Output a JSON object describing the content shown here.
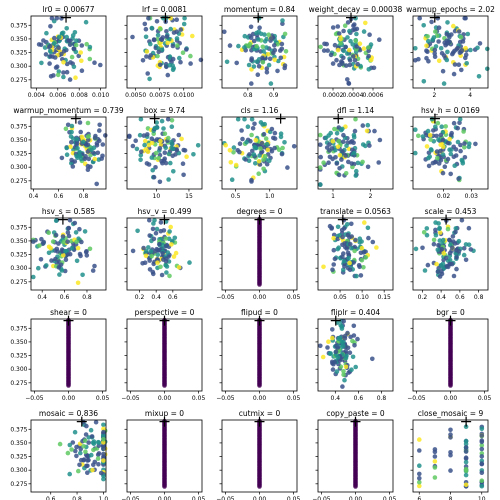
{
  "figure": {
    "width": 500,
    "height": 500
  },
  "colors": {
    "seriesA": "#3b528b",
    "seriesB": "#21918c",
    "seriesC": "#5ec962",
    "seriesD": "#fde725",
    "zeroColumn": "#440154",
    "best": "#000000"
  },
  "chart_data": [
    {
      "type": "scatter",
      "title": "lr0 = 0.00677",
      "best_x": 0.00677,
      "xlim": [
        0.0035,
        0.0105
      ],
      "xticks": [
        0.004,
        0.006,
        0.008,
        0.01
      ],
      "xtick_labels": [
        "0.004",
        "0.006",
        "0.008",
        "0.010"
      ],
      "ylim": [
        0.26,
        0.392
      ],
      "yticks": [
        0.275,
        0.3,
        0.325,
        0.35,
        0.375
      ],
      "ytick_labels": [
        "0.275",
        "0.300",
        "0.325",
        "0.350",
        "0.375"
      ],
      "mode": "cloud",
      "xc": 0.0066,
      "xs": 0.0012,
      "seed": 1
    },
    {
      "type": "scatter",
      "title": "lrf = 0.0081",
      "best_x": 0.0081,
      "xlim": [
        0.0041,
        0.0119
      ],
      "xticks": [
        0.005,
        0.0075,
        0.01
      ],
      "xtick_labels": [
        "0.0050",
        "0.0075",
        "0.0100"
      ],
      "ylim": [
        0.26,
        0.392
      ],
      "mode": "cloud",
      "xc": 0.0078,
      "xs": 0.0013,
      "seed": 2
    },
    {
      "type": "scatter",
      "title": "momentum = 0.84",
      "best_x": 0.84,
      "xlim": [
        0.7,
        0.99
      ],
      "xticks": [
        0.8,
        0.9
      ],
      "xtick_labels": [
        "0.8",
        "0.9"
      ],
      "ylim": [
        0.26,
        0.392
      ],
      "mode": "cloud",
      "xc": 0.86,
      "xs": 0.05,
      "seed": 3
    },
    {
      "type": "scatter",
      "title": "weight_decay = 0.00038",
      "best_x": 0.00038,
      "xlim": [
        5e-05,
        0.0008
      ],
      "xticks": [
        0.0002,
        0.0004,
        0.0006
      ],
      "xtick_labels": [
        "0.0002",
        "0.0004",
        "0.0006"
      ],
      "ylim": [
        0.26,
        0.392
      ],
      "mode": "cloud",
      "xc": 0.00038,
      "xs": 0.00012,
      "seed": 4
    },
    {
      "type": "scatter",
      "title": "warmup_epochs = 2.02",
      "best_x": 2.02,
      "xlim": [
        0.8,
        5.0
      ],
      "xticks": [
        2,
        4
      ],
      "xtick_labels": [
        "2",
        "4"
      ],
      "ylim": [
        0.26,
        0.392
      ],
      "mode": "cloud",
      "xc": 2.8,
      "xs": 0.9,
      "seed": 5
    },
    {
      "type": "scatter",
      "title": "warmup_momentum = 0.739",
      "best_x": 0.739,
      "xlim": [
        0.38,
        0.98
      ],
      "xticks": [
        0.4,
        0.6,
        0.8
      ],
      "xtick_labels": [
        "0.4",
        "0.6",
        "0.8"
      ],
      "ylim": [
        0.26,
        0.392
      ],
      "yticks": [
        0.275,
        0.3,
        0.325,
        0.35,
        0.375
      ],
      "ytick_labels": [
        "0.275",
        "0.300",
        "0.325",
        "0.350",
        "0.375"
      ],
      "mode": "cloud",
      "xc": 0.8,
      "xs": 0.1,
      "seed": 6
    },
    {
      "type": "scatter",
      "title": "box = 9.74",
      "best_x": 9.74,
      "xlim": [
        5.5,
        17
      ],
      "xticks": [
        10,
        15
      ],
      "xtick_labels": [
        "10",
        "15"
      ],
      "ylim": [
        0.26,
        0.392
      ],
      "mode": "cloud",
      "xc": 10.5,
      "xs": 2.0,
      "seed": 7
    },
    {
      "type": "scatter",
      "title": "cls = 1.16",
      "best_x": 1.16,
      "xlim": [
        0.3,
        1.4
      ],
      "xticks": [
        0.5,
        1.0
      ],
      "xtick_labels": [
        "0.5",
        "1.0"
      ],
      "ylim": [
        0.26,
        0.392
      ],
      "mode": "cloud",
      "xc": 0.85,
      "xs": 0.2,
      "seed": 8
    },
    {
      "type": "scatter",
      "title": "dfl = 1.14",
      "best_x": 1.14,
      "xlim": [
        0.6,
        2.6
      ],
      "xticks": [
        1,
        2
      ],
      "xtick_labels": [
        "1",
        "2"
      ],
      "ylim": [
        0.26,
        0.392
      ],
      "mode": "cloud",
      "xc": 1.3,
      "xs": 0.35,
      "seed": 9
    },
    {
      "type": "scatter",
      "title": "hsv_h = 0.0169",
      "best_x": 0.0169,
      "xlim": [
        0.009,
        0.036
      ],
      "xticks": [
        0.02,
        0.03
      ],
      "xtick_labels": [
        "0.02",
        "0.03"
      ],
      "ylim": [
        0.26,
        0.392
      ],
      "mode": "cloud",
      "xc": 0.02,
      "xs": 0.005,
      "seed": 10
    },
    {
      "type": "scatter",
      "title": "hsv_s = 0.585",
      "best_x": 0.585,
      "xlim": [
        0.3,
        0.97
      ],
      "xticks": [
        0.4,
        0.6,
        0.8
      ],
      "xtick_labels": [
        "0.4",
        "0.6",
        "0.8"
      ],
      "ylim": [
        0.26,
        0.392
      ],
      "yticks": [
        0.275,
        0.3,
        0.325,
        0.35,
        0.375
      ],
      "ytick_labels": [
        "0.275",
        "0.300",
        "0.325",
        "0.350",
        "0.375"
      ],
      "mode": "cloud",
      "xc": 0.6,
      "xs": 0.12,
      "seed": 11
    },
    {
      "type": "scatter",
      "title": "hsv_v = 0.499",
      "best_x": 0.499,
      "xlim": [
        0.05,
        0.95
      ],
      "xticks": [
        0.2,
        0.4,
        0.6
      ],
      "xtick_labels": [
        "0.2",
        "0.4",
        "0.6"
      ],
      "ylim": [
        0.26,
        0.392
      ],
      "mode": "cloud",
      "xc": 0.45,
      "xs": 0.1,
      "seed": 12
    },
    {
      "type": "scatter",
      "title": "degrees = 0",
      "best_x": 0,
      "xlim": [
        -0.055,
        0.055
      ],
      "xticks": [
        -0.05,
        0,
        0.05
      ],
      "xtick_labels": [
        "−0.05",
        "0.00",
        "0.05"
      ],
      "ylim": [
        0.26,
        0.392
      ],
      "mode": "column",
      "seed": 13
    },
    {
      "type": "scatter",
      "title": "translate = 0.0563",
      "best_x": 0.0563,
      "xlim": [
        0.0,
        0.17
      ],
      "xticks": [
        0.05,
        0.1,
        0.15
      ],
      "xtick_labels": [
        "0.05",
        "0.10",
        "0.15"
      ],
      "ylim": [
        0.26,
        0.392
      ],
      "mode": "cloud",
      "xc": 0.07,
      "xs": 0.025,
      "seed": 14
    },
    {
      "type": "scatter",
      "title": "scale = 0.453",
      "best_x": 0.453,
      "xlim": [
        0.1,
        0.9
      ],
      "xticks": [
        0.2,
        0.4,
        0.6,
        0.8
      ],
      "xtick_labels": [
        "0.2",
        "0.4",
        "0.6",
        "0.8"
      ],
      "ylim": [
        0.26,
        0.392
      ],
      "mode": "cloud",
      "xc": 0.48,
      "xs": 0.12,
      "seed": 15
    },
    {
      "type": "scatter",
      "title": "shear = 0",
      "best_x": 0,
      "xlim": [
        -0.055,
        0.055
      ],
      "xticks": [
        -0.05,
        0,
        0.05
      ],
      "xtick_labels": [
        "−0.05",
        "0.00",
        "0.05"
      ],
      "ylim": [
        0.26,
        0.392
      ],
      "yticks": [
        0.275,
        0.3,
        0.325,
        0.35,
        0.375
      ],
      "ytick_labels": [
        "0.275",
        "0.300",
        "0.325",
        "0.350",
        "0.375"
      ],
      "mode": "column",
      "seed": 16
    },
    {
      "type": "scatter",
      "title": "perspective = 0",
      "best_x": 0,
      "xlim": [
        -0.055,
        0.055
      ],
      "xticks": [
        -0.05,
        0,
        0.05
      ],
      "xtick_labels": [
        "−0.05",
        "0.00",
        "0.05"
      ],
      "ylim": [
        0.26,
        0.392
      ],
      "mode": "column",
      "seed": 17
    },
    {
      "type": "scatter",
      "title": "flipud = 0",
      "best_x": 0,
      "xlim": [
        -0.055,
        0.055
      ],
      "xticks": [
        -0.05,
        0,
        0.05
      ],
      "xtick_labels": [
        "−0.05",
        "0.00",
        "0.05"
      ],
      "ylim": [
        0.26,
        0.392
      ],
      "mode": "column",
      "seed": 18
    },
    {
      "type": "scatter",
      "title": "fliplr = 0.404",
      "best_x": 0.404,
      "xlim": [
        0.25,
        0.9
      ],
      "xticks": [
        0.4,
        0.6,
        0.8
      ],
      "xtick_labels": [
        "0.4",
        "0.6",
        "0.8"
      ],
      "ylim": [
        0.26,
        0.392
      ],
      "mode": "cloud",
      "xc": 0.45,
      "xs": 0.07,
      "seed": 19
    },
    {
      "type": "scatter",
      "title": "bgr = 0",
      "best_x": 0,
      "xlim": [
        -0.055,
        0.055
      ],
      "xticks": [
        -0.05,
        0,
        0.05
      ],
      "xtick_labels": [
        "−0.05",
        "0.00",
        "0.05"
      ],
      "ylim": [
        0.26,
        0.392
      ],
      "mode": "column",
      "seed": 20
    },
    {
      "type": "scatter",
      "title": "mosaic = 0.836",
      "best_x": 0.836,
      "xlim": [
        0.45,
        1.02
      ],
      "xticks": [
        0.6,
        0.8,
        1.0
      ],
      "xtick_labels": [
        "0.6",
        "0.8",
        "1.0"
      ],
      "ylim": [
        0.26,
        0.392
      ],
      "yticks": [
        0.275,
        0.3,
        0.325,
        0.35,
        0.375
      ],
      "ytick_labels": [
        "0.275",
        "0.300",
        "0.325",
        "0.350",
        "0.375"
      ],
      "mode": "edge",
      "xc": 0.88,
      "xs": 0.08,
      "edge_x": 1.0,
      "seed": 21
    },
    {
      "type": "scatter",
      "title": "mixup = 0",
      "best_x": 0,
      "xlim": [
        -0.055,
        0.055
      ],
      "xticks": [
        -0.05,
        0,
        0.05
      ],
      "xtick_labels": [
        "−0.05",
        "0.00",
        "0.05"
      ],
      "ylim": [
        0.26,
        0.392
      ],
      "mode": "column",
      "seed": 22
    },
    {
      "type": "scatter",
      "title": "cutmix = 0",
      "best_x": 0,
      "xlim": [
        -0.055,
        0.055
      ],
      "xticks": [
        -0.05,
        0,
        0.05
      ],
      "xtick_labels": [
        "−0.05",
        "0.00",
        "0.05"
      ],
      "ylim": [
        0.26,
        0.392
      ],
      "mode": "column",
      "seed": 23
    },
    {
      "type": "scatter",
      "title": "copy_paste = 0",
      "best_x": 0,
      "xlim": [
        -0.055,
        0.055
      ],
      "xticks": [
        -0.05,
        0,
        0.05
      ],
      "xtick_labels": [
        "−0.05",
        "0.00",
        "0.05"
      ],
      "ylim": [
        0.26,
        0.392
      ],
      "mode": "column",
      "seed": 24
    },
    {
      "type": "scatter",
      "title": "close_mosaic = 9",
      "best_x": 9,
      "xlim": [
        5.6,
        10.4
      ],
      "xticks": [
        6,
        8,
        10
      ],
      "xtick_labels": [
        "6",
        "8",
        "10"
      ],
      "ylim": [
        0.26,
        0.392
      ],
      "mode": "discrete",
      "levels": [
        6,
        7,
        8,
        9,
        10
      ],
      "seed": 25
    }
  ]
}
